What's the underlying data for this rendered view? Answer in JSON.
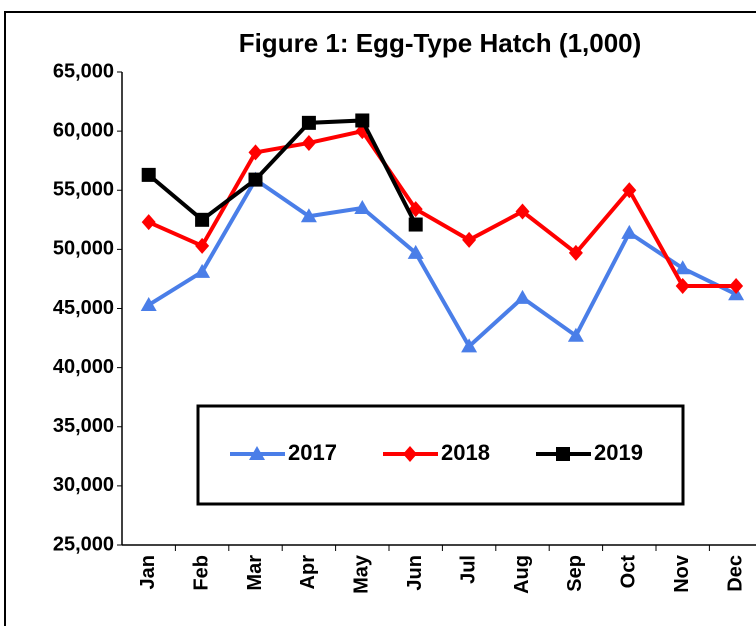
{
  "chart_data": {
    "type": "line",
    "title": "Figure 1: Egg-Type Hatch (1,000)",
    "categories": [
      "Jan",
      "Feb",
      "Mar",
      "Apr",
      "May",
      "Jun",
      "Jul",
      "Aug",
      "Sep",
      "Oct",
      "Nov",
      "Dec"
    ],
    "series": [
      {
        "name": "2017",
        "color": "#4a7ee8",
        "marker": "triangle",
        "values": [
          45300,
          48100,
          55900,
          52800,
          53500,
          49700,
          41800,
          45900,
          42700,
          51400,
          48400,
          46200
        ]
      },
      {
        "name": "2018",
        "color": "#ff0000",
        "marker": "diamond",
        "values": [
          52300,
          50300,
          58200,
          59000,
          60000,
          53400,
          50800,
          53200,
          49700,
          55000,
          46900,
          46900
        ]
      },
      {
        "name": "2019",
        "color": "#000000",
        "marker": "square",
        "values": [
          56300,
          52500,
          55900,
          60700,
          60900,
          52100,
          null,
          null,
          null,
          null,
          null,
          null
        ]
      }
    ],
    "ylim": [
      25000,
      65000
    ],
    "yticks": [
      {
        "value": 25000,
        "label": "25,000"
      },
      {
        "value": 30000,
        "label": "30,000"
      },
      {
        "value": 35000,
        "label": "35,000"
      },
      {
        "value": 40000,
        "label": "40,000"
      },
      {
        "value": 45000,
        "label": "45,000"
      },
      {
        "value": 50000,
        "label": "50,000"
      },
      {
        "value": 55000,
        "label": "55,000"
      },
      {
        "value": 60000,
        "label": "60,000"
      },
      {
        "value": 65000,
        "label": "65,000"
      }
    ],
    "grid": false
  }
}
